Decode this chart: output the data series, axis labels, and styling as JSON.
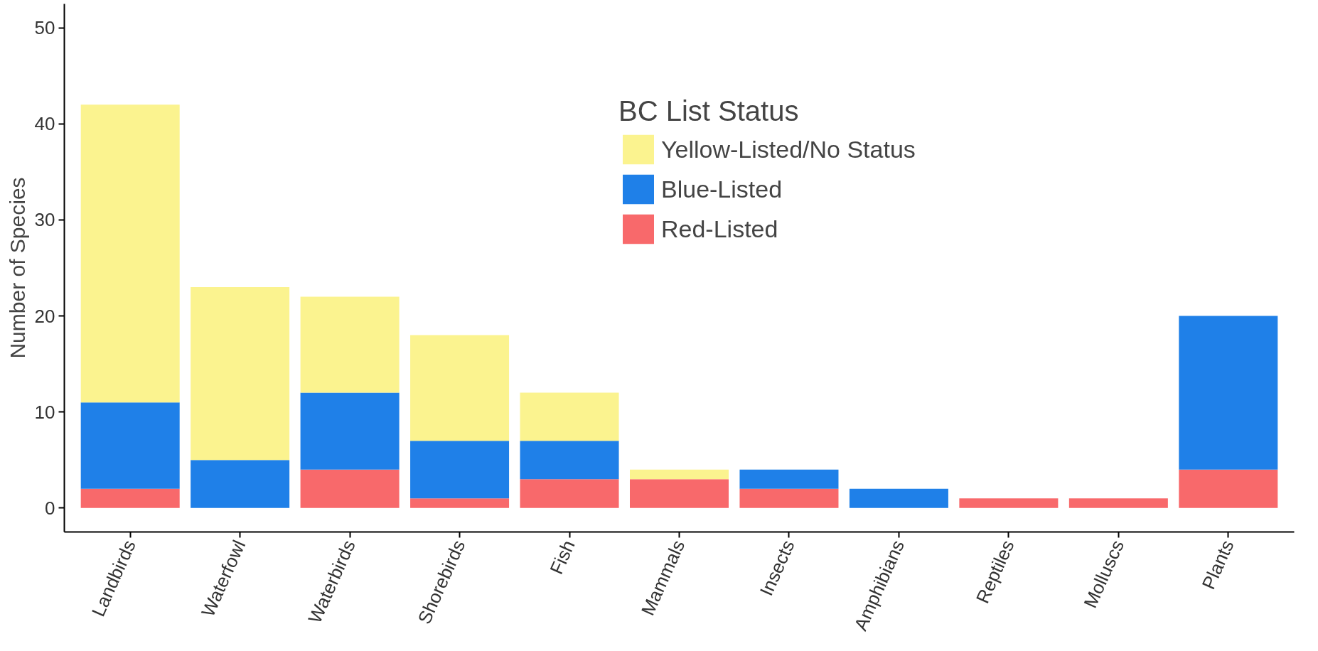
{
  "chart_data": {
    "type": "bar",
    "stacked": true,
    "ylabel": "Number of Species",
    "legend_title": "BC List Status",
    "legend": "top right",
    "grid": false,
    "categories": [
      "Landbirds",
      "Waterfowl",
      "Waterbirds",
      "Shorebirds",
      "Fish",
      "Mammals",
      "Insects",
      "Amphibians",
      "Reptiles",
      "Molluscs",
      "Plants"
    ],
    "series": [
      {
        "name": "Red-Listed",
        "color": "#f8696b",
        "values": [
          2,
          0,
          4,
          1,
          3,
          3,
          2,
          0,
          1,
          1,
          4
        ]
      },
      {
        "name": "Blue-Listed",
        "color": "#1f80e8",
        "values": [
          9,
          5,
          8,
          6,
          4,
          0,
          2,
          2,
          0,
          0,
          16
        ]
      },
      {
        "name": "Yellow-Listed/No Status",
        "color": "#fbf38f",
        "values": [
          31,
          18,
          10,
          11,
          5,
          1,
          0,
          0,
          0,
          0,
          0
        ]
      }
    ],
    "ylim": [
      -2.5,
      52.5
    ],
    "yticks": [
      0,
      10,
      20,
      30,
      40,
      50
    ]
  }
}
